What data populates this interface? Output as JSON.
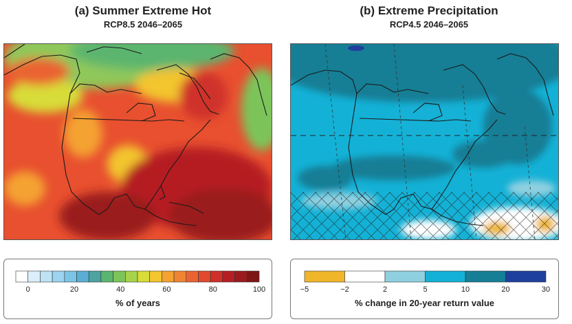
{
  "panels": [
    {
      "title": "(a) Summer Extreme Hot",
      "subtitle": "RCP8.5 2046–2065"
    },
    {
      "title": "(b) Extreme Precipitation",
      "subtitle": "RCP4.5 2046–2065"
    }
  ],
  "legend_a": {
    "label": "% of years",
    "ticks": [
      "0",
      "20",
      "40",
      "60",
      "80",
      "100"
    ],
    "colors": [
      "#ffffff",
      "#dbeefa",
      "#bde2f4",
      "#9dd4ef",
      "#7cc4e6",
      "#5aaed4",
      "#4ca3a0",
      "#5cb56e",
      "#7cc45a",
      "#a7d34a",
      "#d8dc38",
      "#f3c52e",
      "#f4a230",
      "#ef8433",
      "#ea6433",
      "#e14a2e",
      "#cf302a",
      "#b51f24",
      "#9a1b1e",
      "#7e1517"
    ]
  },
  "legend_b": {
    "label": "% change in 20-year return value",
    "ticks": [
      "−5",
      "−2",
      "2",
      "5",
      "10",
      "20",
      "30"
    ],
    "colors": [
      "#efb62a",
      "#ffffff",
      "#8fd0e0",
      "#14b1d6",
      "#167e95",
      "#1f3f9c"
    ]
  },
  "chart_data": [
    {
      "type": "heatmap",
      "title": "(a) Summer Extreme Hot",
      "subtitle": "RCP8.5 2046–2065",
      "colorbar_label": "% of years",
      "colorbar_range": [
        0,
        100
      ],
      "colorbar_ticks": [
        0,
        20,
        40,
        60,
        80,
        100
      ]
    },
    {
      "type": "heatmap",
      "title": "(b) Extreme Precipitation",
      "subtitle": "RCP4.5 2046–2065",
      "colorbar_label": "% change in 20-year return value",
      "colorbar_bins": [
        -5,
        -2,
        2,
        5,
        10,
        20,
        30
      ],
      "colorbar_ticks": [
        "−5",
        "−2",
        "2",
        "5",
        "10",
        "20",
        "30"
      ]
    }
  ]
}
